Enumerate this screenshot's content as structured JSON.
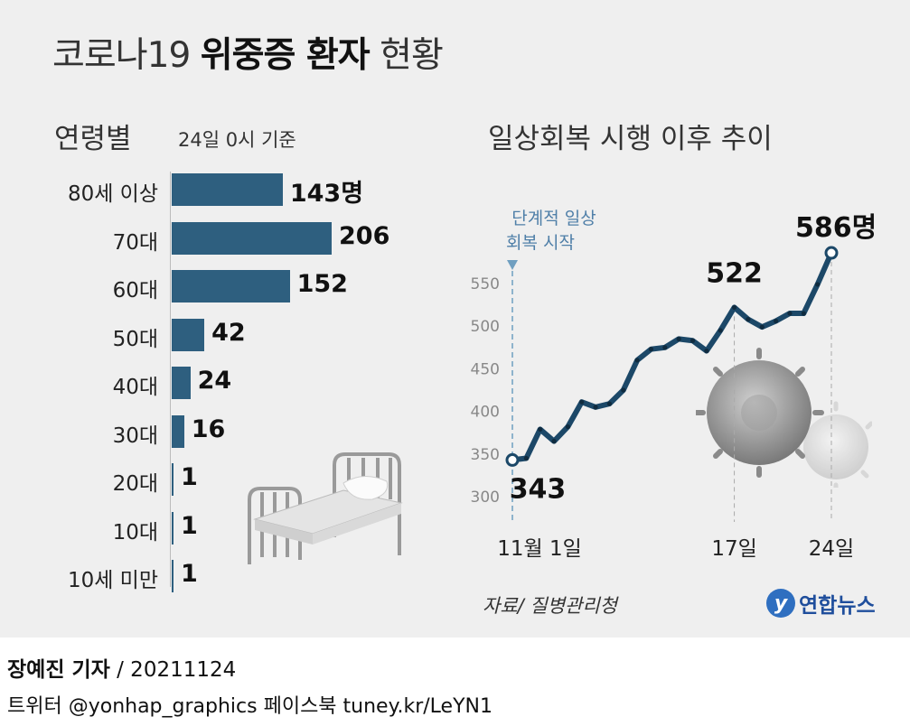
{
  "header": {
    "title_prefix": "코로나19",
    "title_bold": "위중증 환자",
    "title_suffix": "현황"
  },
  "left": {
    "subtitle": "연령별",
    "basis": "24일 0시 기준"
  },
  "right": {
    "subtitle": "일상회복 시행 이후 추이",
    "annotation_line1": "단계적 일상",
    "annotation_line2": "회복 시작"
  },
  "chart_data": [
    {
      "type": "bar",
      "orientation": "horizontal",
      "title": "연령별",
      "categories": [
        "80세 이상",
        "70대",
        "60대",
        "50대",
        "40대",
        "30대",
        "20대",
        "10대",
        "10세 미만"
      ],
      "values": [
        143,
        206,
        152,
        42,
        24,
        16,
        1,
        1,
        1
      ],
      "value_labels": [
        "143명",
        "206",
        "152",
        "42",
        "24",
        "16",
        "1",
        "1",
        "1"
      ],
      "color": "#2e5f7f"
    },
    {
      "type": "line",
      "title": "일상회복 시행 이후 추이",
      "x": [
        1,
        2,
        3,
        4,
        5,
        6,
        7,
        8,
        9,
        10,
        11,
        12,
        13,
        14,
        15,
        16,
        17,
        18,
        19,
        20,
        21,
        22,
        23,
        24
      ],
      "y": [
        343,
        345,
        379,
        365,
        382,
        411,
        405,
        409,
        425,
        460,
        473,
        475,
        485,
        483,
        471,
        495,
        522,
        508,
        499,
        506,
        515,
        515,
        549,
        586
      ],
      "x_ticks": [
        1,
        17,
        24
      ],
      "x_tick_labels": [
        "11월 1일",
        "17일",
        "24일"
      ],
      "y_ticks": [
        300,
        350,
        400,
        450,
        500,
        550
      ],
      "ylim": [
        300,
        560
      ],
      "point_labels": [
        {
          "x": 1,
          "label": "343"
        },
        {
          "x": 17,
          "label": "522"
        },
        {
          "x": 24,
          "label": "586명"
        }
      ],
      "line_color": "#1c4868",
      "dot_color": "#0f2b3f",
      "grid": false
    }
  ],
  "footer": {
    "source": "자료/ 질병관리청",
    "logo_text": "연합뉴스",
    "reporter_name": "장예진 기자",
    "reporter_date": "/ 20211124",
    "social": "트위터 @yonhap_graphics  페이스북 tuney.kr/LeYN1"
  }
}
